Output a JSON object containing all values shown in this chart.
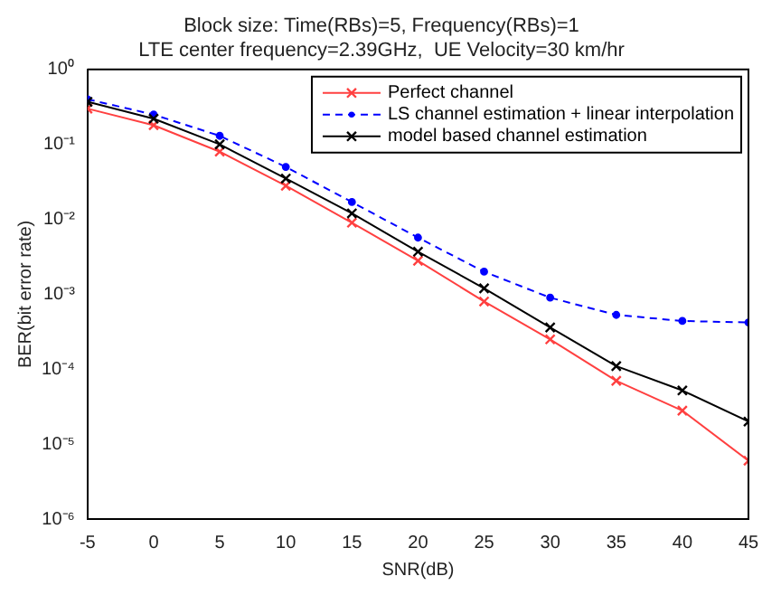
{
  "chart_data": {
    "type": "line",
    "title": [
      "Block size: Time(RBs)=5, Frequency(RBs)=1",
      "LTE center frequency=2.39GHz,  UE Velocity=30 km/hr"
    ],
    "xlabel": "SNR(dB)",
    "ylabel": "BER(bit error rate)",
    "x": [
      -5,
      0,
      5,
      10,
      15,
      20,
      25,
      30,
      35,
      40,
      45
    ],
    "series": [
      {
        "name": "Perfect channel",
        "color": "#ff4040",
        "marker": "cross",
        "line_style": "solid",
        "values": [
          0.3,
          0.18,
          0.08,
          0.028,
          0.009,
          0.0028,
          0.0008,
          0.00025,
          7e-05,
          2.8e-05,
          6e-06
        ]
      },
      {
        "name": "LS channel estimation + linear interpolation",
        "color": "#0000ff",
        "marker": "circle",
        "line_style": "dashed",
        "values": [
          0.4,
          0.25,
          0.13,
          0.05,
          0.017,
          0.0057,
          0.002,
          0.0009,
          0.00053,
          0.00044,
          0.00042
        ]
      },
      {
        "name": "model based channel estimation",
        "color": "#000000",
        "marker": "cross",
        "line_style": "solid",
        "values": [
          0.37,
          0.22,
          0.1,
          0.035,
          0.012,
          0.0037,
          0.0012,
          0.00036,
          0.00011,
          5.2e-05,
          2e-05
        ]
      }
    ],
    "log": "y",
    "xlim": [
      -5,
      45
    ],
    "xticks": [
      -5,
      0,
      5,
      10,
      15,
      20,
      25,
      30,
      35,
      40,
      45
    ],
    "ylim": [
      1e-06,
      1
    ],
    "yticks": [
      {
        "value": 1e-06,
        "label": "10⁻⁶"
      },
      {
        "value": 1e-05,
        "label": "10⁻⁵"
      },
      {
        "value": 0.0001,
        "label": "10⁻⁴"
      },
      {
        "value": 0.001,
        "label": "10⁻³"
      },
      {
        "value": 0.01,
        "label": "10⁻²"
      },
      {
        "value": 0.1,
        "label": "10⁻¹"
      },
      {
        "value": 1,
        "label": "10⁰"
      }
    ],
    "grid": false,
    "legend": "top right"
  }
}
